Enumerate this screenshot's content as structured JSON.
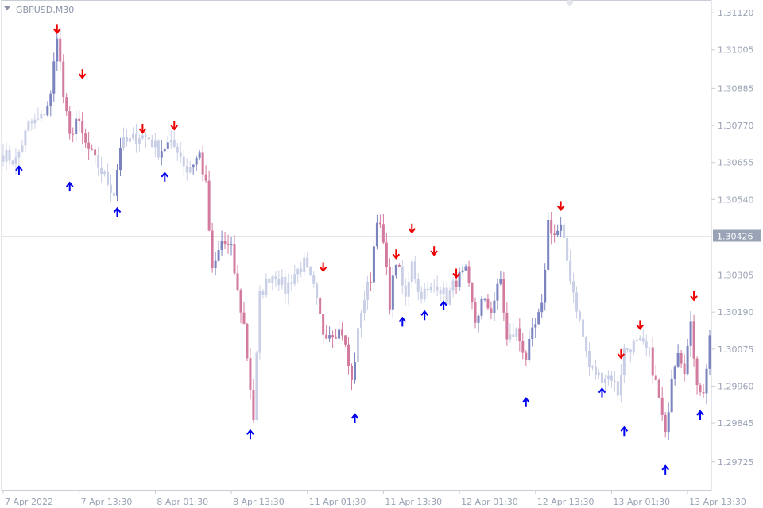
{
  "colors": {
    "background": "#ffffff",
    "frame": "#c9cdd6",
    "grid_line": "#e4e6ec",
    "candle_faded": "#c9cfe6",
    "candle_bull": "#7b84bf",
    "candle_bear": "#d37a9f",
    "arrow_up": "#0000ee",
    "arrow_down": "#ee0000",
    "price_badge": "#9aa3b5",
    "axis_text": "#9aa3b5"
  },
  "chart_data": {
    "type": "candlestick",
    "title": "GBPUSD,M30",
    "symbol": "GBPUSD",
    "timeframe": "M30",
    "ylim": [
      1.2968,
      1.3114
    ],
    "y_ticks": [
      "1.31120",
      "1.31005",
      "1.30885",
      "1.30770",
      "1.30655",
      "1.30540",
      "1.30305",
      "1.30190",
      "1.30075",
      "1.29960",
      "1.29845",
      "1.29725"
    ],
    "x_tick_labels": [
      "7 Apr 2022",
      "7 Apr 13:30",
      "8 Apr 01:30",
      "8 Apr 13:30",
      "11 Apr 01:30",
      "11 Apr 13:30",
      "12 Apr 01:30",
      "12 Apr 13:30",
      "13 Apr 01:30",
      "13 Apr 13:30"
    ],
    "x_tick_index": [
      0,
      24,
      48,
      72,
      96,
      120,
      144,
      168,
      192,
      216
    ],
    "current_price": 1.30426,
    "current_price_label": "1.30426",
    "bar_count": 224,
    "price_path": [
      [
        0,
        1.3068
      ],
      [
        4,
        1.3066
      ],
      [
        8,
        1.3077
      ],
      [
        12,
        1.3079
      ],
      [
        15,
        1.3086
      ],
      [
        17,
        1.3106
      ],
      [
        19,
        1.3086
      ],
      [
        21,
        1.3073
      ],
      [
        23,
        1.3079
      ],
      [
        26,
        1.3071
      ],
      [
        29,
        1.3066
      ],
      [
        32,
        1.3061
      ],
      [
        35,
        1.3056
      ],
      [
        37,
        1.3071
      ],
      [
        40,
        1.3072
      ],
      [
        43,
        1.3074
      ],
      [
        46,
        1.3073
      ],
      [
        49,
        1.3069
      ],
      [
        52,
        1.3071
      ],
      [
        55,
        1.307
      ],
      [
        58,
        1.3063
      ],
      [
        62,
        1.3068
      ],
      [
        64,
        1.3058
      ],
      [
        66,
        1.3031
      ],
      [
        69,
        1.3041
      ],
      [
        72,
        1.3038
      ],
      [
        74,
        1.3025
      ],
      [
        76,
        1.3015
      ],
      [
        79,
        1.2986
      ],
      [
        81,
        1.3024
      ],
      [
        84,
        1.303
      ],
      [
        86,
        1.3031
      ],
      [
        89,
        1.3026
      ],
      [
        92,
        1.3031
      ],
      [
        95,
        1.3034
      ],
      [
        98,
        1.3026
      ],
      [
        101,
        1.3013
      ],
      [
        104,
        1.3013
      ],
      [
        107,
        1.3013
      ],
      [
        110,
        1.2997
      ],
      [
        113,
        1.302
      ],
      [
        116,
        1.303
      ],
      [
        118,
        1.3049
      ],
      [
        120,
        1.304
      ],
      [
        122,
        1.3022
      ],
      [
        124,
        1.3035
      ],
      [
        127,
        1.3023
      ],
      [
        129,
        1.3036
      ],
      [
        131,
        1.3025
      ],
      [
        134,
        1.3025
      ],
      [
        137,
        1.3028
      ],
      [
        140,
        1.3023
      ],
      [
        143,
        1.3029
      ],
      [
        146,
        1.3031
      ],
      [
        149,
        1.3016
      ],
      [
        151,
        1.3022
      ],
      [
        154,
        1.302
      ],
      [
        157,
        1.3029
      ],
      [
        159,
        1.301
      ],
      [
        162,
        1.3013
      ],
      [
        165,
        1.3005
      ],
      [
        167,
        1.3012
      ],
      [
        170,
        1.302
      ],
      [
        172,
        1.3047
      ],
      [
        174,
        1.3043
      ],
      [
        176,
        1.3045
      ],
      [
        179,
        1.303
      ],
      [
        182,
        1.3016
      ],
      [
        185,
        1.3002
      ],
      [
        188,
        1.2999
      ],
      [
        192,
        1.2999
      ],
      [
        194,
        1.2994
      ],
      [
        196,
        1.3007
      ],
      [
        199,
        1.3009
      ],
      [
        201,
        1.3009
      ],
      [
        204,
        1.3006
      ],
      [
        207,
        1.2992
      ],
      [
        209,
        1.298
      ],
      [
        211,
        1.3
      ],
      [
        213,
        1.3008
      ],
      [
        215,
        1.3002
      ],
      [
        217,
        1.3014
      ],
      [
        219,
        1.2998
      ],
      [
        221,
        1.2993
      ],
      [
        223,
        1.3012
      ]
    ],
    "bold_bar_ranges": [
      [
        14,
        30
      ],
      [
        36,
        38
      ],
      [
        50,
        53
      ],
      [
        60,
        80
      ],
      [
        100,
        112
      ],
      [
        116,
        126
      ],
      [
        143,
        160
      ],
      [
        163,
        177
      ],
      [
        205,
        224
      ]
    ],
    "arrows": [
      {
        "index": 5,
        "direction": "up",
        "price": 1.3063
      },
      {
        "index": 17,
        "direction": "down",
        "price": 1.3107
      },
      {
        "index": 21,
        "direction": "up",
        "price": 1.3058
      },
      {
        "index": 25,
        "direction": "down",
        "price": 1.3093
      },
      {
        "index": 36,
        "direction": "up",
        "price": 1.305
      },
      {
        "index": 44,
        "direction": "down",
        "price": 1.3076
      },
      {
        "index": 51,
        "direction": "up",
        "price": 1.3061
      },
      {
        "index": 54,
        "direction": "down",
        "price": 1.3077
      },
      {
        "index": 78,
        "direction": "up",
        "price": 1.2981
      },
      {
        "index": 101,
        "direction": "down",
        "price": 1.3033
      },
      {
        "index": 111,
        "direction": "up",
        "price": 1.2986
      },
      {
        "index": 124,
        "direction": "down",
        "price": 1.3037
      },
      {
        "index": 126,
        "direction": "up",
        "price": 1.3016
      },
      {
        "index": 129,
        "direction": "down",
        "price": 1.3045
      },
      {
        "index": 133,
        "direction": "up",
        "price": 1.3018
      },
      {
        "index": 136,
        "direction": "down",
        "price": 1.3038
      },
      {
        "index": 139,
        "direction": "up",
        "price": 1.3021
      },
      {
        "index": 143,
        "direction": "down",
        "price": 1.3031
      },
      {
        "index": 165,
        "direction": "up",
        "price": 1.2991
      },
      {
        "index": 176,
        "direction": "down",
        "price": 1.3052
      },
      {
        "index": 189,
        "direction": "up",
        "price": 1.2994
      },
      {
        "index": 195,
        "direction": "down",
        "price": 1.3006
      },
      {
        "index": 196,
        "direction": "up",
        "price": 1.2982
      },
      {
        "index": 201,
        "direction": "down",
        "price": 1.3015
      },
      {
        "index": 209,
        "direction": "up",
        "price": 1.297
      },
      {
        "index": 218,
        "direction": "down",
        "price": 1.3024
      },
      {
        "index": 220,
        "direction": "up",
        "price": 1.2987
      }
    ]
  }
}
